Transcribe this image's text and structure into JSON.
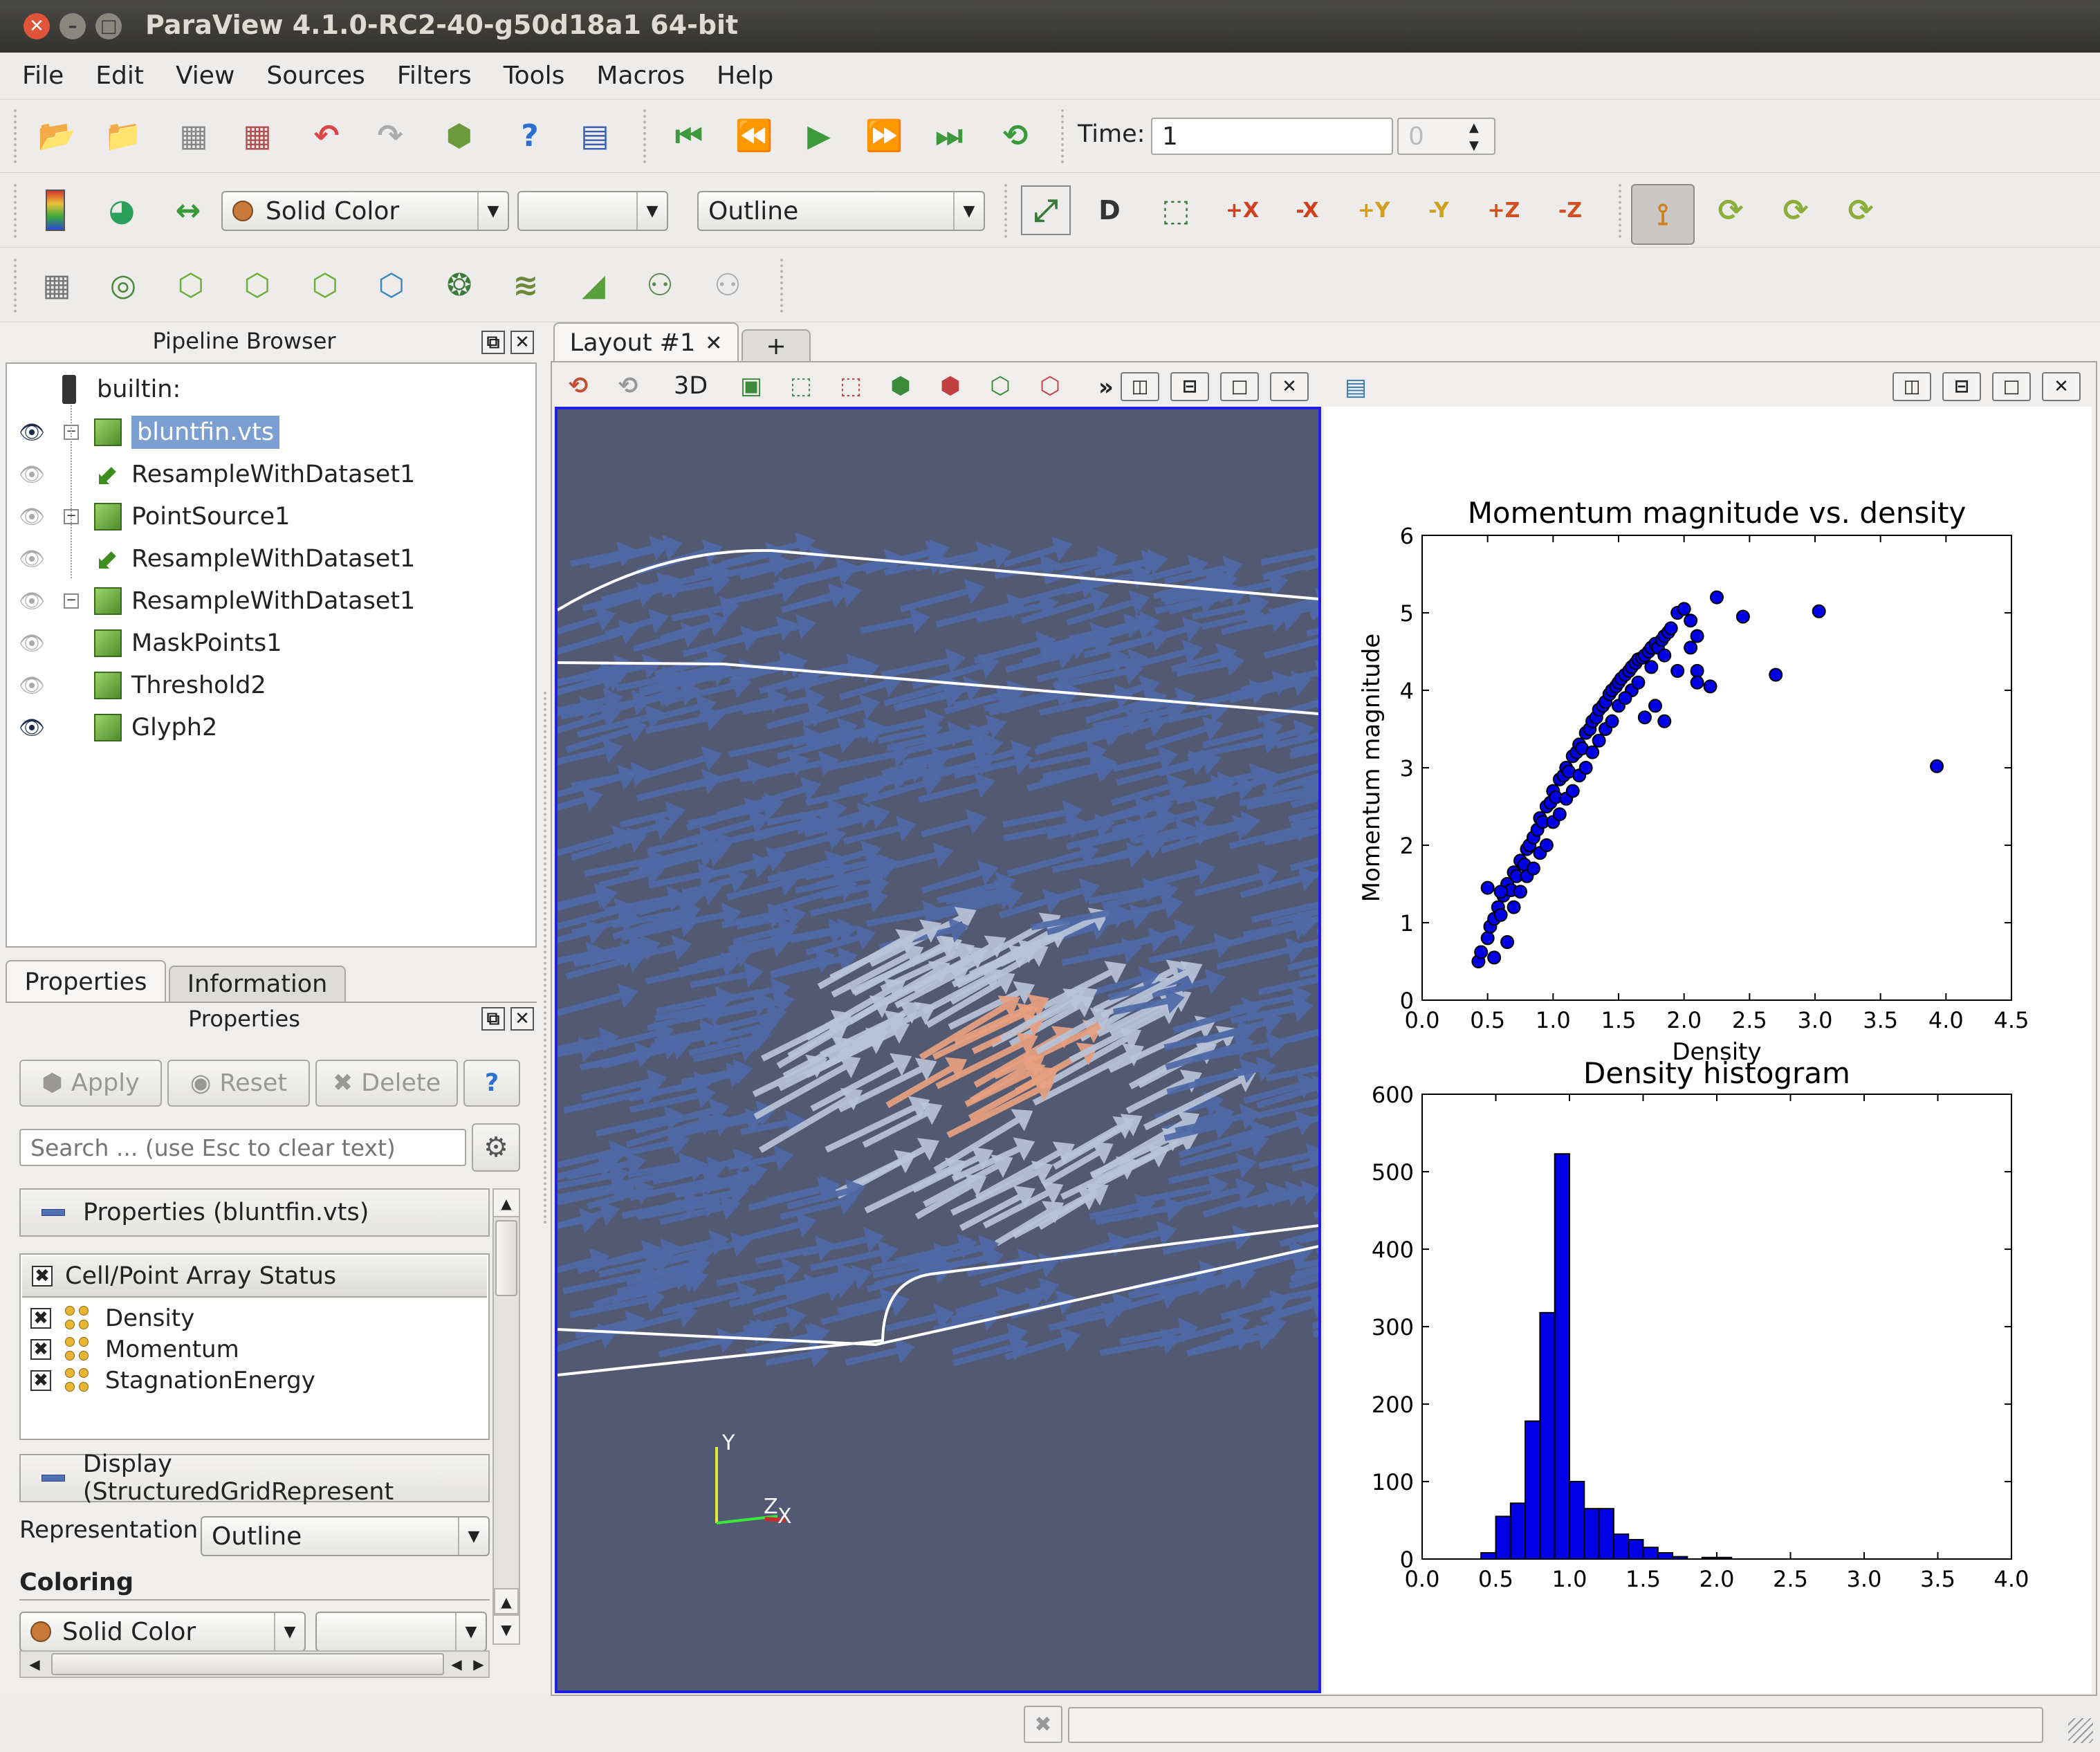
{
  "window": {
    "title": "ParaView 4.1.0-RC2-40-g50d18a1 64-bit"
  },
  "menu": [
    "File",
    "Edit",
    "View",
    "Sources",
    "Filters",
    "Tools",
    "Macros",
    "Help"
  ],
  "toolbar": {
    "time_label": "Time:",
    "time_value": "1",
    "time_index": "0",
    "color_combo": "Solid Color",
    "component_combo": "",
    "representation_combo": "Outline",
    "camera_buttons": [
      "+X",
      "-X",
      "+Y",
      "-Y",
      "+Z",
      "-Z"
    ]
  },
  "pipeline": {
    "title": "Pipeline Browser",
    "root": "builtin:",
    "items": [
      {
        "label": "bluntfin.vts",
        "icon": "cube",
        "indent": 0,
        "visible": true,
        "selected": true
      },
      {
        "label": "ResampleWithDataset1",
        "icon": "filter",
        "indent": 1,
        "visible": false
      },
      {
        "label": "PointSource1",
        "icon": "cube",
        "indent": 0,
        "visible": false
      },
      {
        "label": "ResampleWithDataset1",
        "icon": "filter",
        "indent": 1,
        "visible": false
      },
      {
        "label": "ResampleWithDataset1",
        "icon": "cube",
        "indent": 0,
        "visible": false
      },
      {
        "label": "MaskPoints1",
        "icon": "cube",
        "indent": 1,
        "visible": false
      },
      {
        "label": "Threshold2",
        "icon": "cube",
        "indent": 1,
        "visible": false
      },
      {
        "label": "Glyph2",
        "icon": "cube",
        "indent": 1,
        "visible": true
      }
    ]
  },
  "properties": {
    "tabs": [
      "Properties",
      "Information"
    ],
    "title": "Properties",
    "apply": "Apply",
    "reset": "Reset",
    "delete": "Delete",
    "help": "?",
    "search_placeholder": "Search ... (use Esc to clear text)",
    "section_properties": "Properties (bluntfin.vts)",
    "array_header": "Cell/Point Array Status",
    "arrays": [
      "Density",
      "Momentum",
      "StagnationEnergy"
    ],
    "section_display": "Display (StructuredGridRepresent",
    "representation_label": "Representation",
    "representation_value": "Outline",
    "coloring_label": "Coloring",
    "coloring_value": "Solid Color",
    "coloring_component": ""
  },
  "layout": {
    "tab": "Layout #1",
    "add_tab": "+",
    "view_mode": "3D",
    "more": "»",
    "axes": {
      "y": "Y",
      "z": "Z",
      "x": "X"
    }
  },
  "colors": {
    "accent": "#1f1fe6",
    "view_bg": "#525a73",
    "glyph": "#4f6aa8",
    "glyph_hot": "#e8a080"
  },
  "chart_data": [
    {
      "type": "scatter",
      "title": "Momentum magnitude vs. density",
      "xlabel": "Density",
      "ylabel": "Momentum magnitude",
      "xlim": [
        0.0,
        4.5
      ],
      "ylim": [
        0,
        6
      ],
      "xticks": [
        "0.0",
        "0.5",
        "1.0",
        "1.5",
        "2.0",
        "2.5",
        "3.0",
        "3.5",
        "4.0",
        "4.5"
      ],
      "yticks": [
        "0",
        "1",
        "2",
        "3",
        "4",
        "5",
        "6"
      ],
      "points": [
        [
          0.43,
          0.5
        ],
        [
          0.45,
          0.62
        ],
        [
          0.5,
          0.8
        ],
        [
          0.52,
          0.95
        ],
        [
          0.55,
          1.05
        ],
        [
          0.58,
          1.2
        ],
        [
          0.6,
          1.1
        ],
        [
          0.62,
          1.35
        ],
        [
          0.65,
          1.5
        ],
        [
          0.68,
          1.42
        ],
        [
          0.7,
          1.65
        ],
        [
          0.72,
          1.6
        ],
        [
          0.75,
          1.8
        ],
        [
          0.78,
          1.75
        ],
        [
          0.8,
          1.95
        ],
        [
          0.82,
          2.0
        ],
        [
          0.85,
          2.1
        ],
        [
          0.88,
          2.2
        ],
        [
          0.9,
          2.35
        ],
        [
          0.92,
          2.3
        ],
        [
          0.95,
          2.5
        ],
        [
          0.98,
          2.55
        ],
        [
          1.0,
          2.7
        ],
        [
          1.02,
          2.62
        ],
        [
          1.05,
          2.85
        ],
        [
          1.08,
          2.9
        ],
        [
          1.1,
          3.0
        ],
        [
          1.12,
          2.95
        ],
        [
          1.15,
          3.15
        ],
        [
          1.18,
          3.2
        ],
        [
          1.2,
          3.3
        ],
        [
          1.22,
          3.25
        ],
        [
          1.25,
          3.45
        ],
        [
          1.28,
          3.5
        ],
        [
          1.3,
          3.6
        ],
        [
          1.33,
          3.65
        ],
        [
          1.35,
          3.75
        ],
        [
          1.38,
          3.8
        ],
        [
          1.4,
          3.85
        ],
        [
          1.43,
          3.95
        ],
        [
          1.45,
          4.0
        ],
        [
          1.48,
          4.05
        ],
        [
          1.5,
          4.1
        ],
        [
          1.52,
          4.15
        ],
        [
          1.55,
          4.2
        ],
        [
          1.58,
          4.25
        ],
        [
          1.6,
          4.3
        ],
        [
          1.63,
          4.35
        ],
        [
          1.65,
          4.4
        ],
        [
          1.68,
          4.42
        ],
        [
          1.7,
          4.45
        ],
        [
          1.73,
          4.5
        ],
        [
          1.75,
          4.55
        ],
        [
          1.78,
          4.6
        ],
        [
          1.8,
          4.55
        ],
        [
          1.83,
          4.65
        ],
        [
          1.85,
          4.7
        ],
        [
          1.88,
          4.75
        ],
        [
          1.9,
          4.8
        ],
        [
          1.95,
          5.0
        ],
        [
          2.0,
          5.05
        ],
        [
          2.05,
          4.9
        ],
        [
          2.1,
          4.7
        ],
        [
          2.25,
          5.2
        ],
        [
          2.45,
          4.95
        ],
        [
          2.1,
          4.25
        ],
        [
          2.1,
          4.1
        ],
        [
          2.05,
          4.55
        ],
        [
          2.2,
          4.05
        ],
        [
          1.95,
          4.25
        ],
        [
          1.85,
          3.6
        ],
        [
          1.7,
          3.65
        ],
        [
          1.78,
          3.8
        ],
        [
          1.6,
          4.0
        ],
        [
          2.7,
          4.2
        ],
        [
          3.03,
          5.02
        ],
        [
          3.93,
          3.02
        ],
        [
          0.55,
          0.55
        ],
        [
          0.5,
          1.45
        ],
        [
          0.6,
          1.4
        ],
        [
          0.7,
          1.2
        ],
        [
          0.8,
          1.6
        ],
        [
          0.9,
          1.9
        ],
        [
          1.0,
          2.3
        ],
        [
          1.1,
          2.6
        ],
        [
          1.2,
          2.9
        ],
        [
          1.3,
          3.2
        ],
        [
          1.4,
          3.5
        ],
        [
          1.5,
          3.8
        ],
        [
          0.65,
          0.75
        ],
        [
          0.75,
          1.4
        ],
        [
          0.85,
          1.7
        ],
        [
          0.95,
          2.0
        ],
        [
          1.05,
          2.4
        ],
        [
          1.15,
          2.7
        ],
        [
          1.25,
          3.0
        ],
        [
          1.35,
          3.35
        ],
        [
          1.45,
          3.6
        ],
        [
          1.55,
          3.9
        ],
        [
          1.65,
          4.1
        ],
        [
          1.75,
          4.3
        ],
        [
          1.85,
          4.45
        ]
      ]
    },
    {
      "type": "bar",
      "title": "Density histogram",
      "xlim": [
        0.0,
        4.0
      ],
      "ylim": [
        0,
        600
      ],
      "xticks": [
        "0.0",
        "0.5",
        "1.0",
        "1.5",
        "2.0",
        "2.5",
        "3.0",
        "3.5",
        "4.0"
      ],
      "yticks": [
        "0",
        "100",
        "200",
        "300",
        "400",
        "500",
        "600"
      ],
      "bin_start": 0.4,
      "bin_width": 0.1,
      "values": [
        8,
        55,
        72,
        178,
        318,
        523,
        100,
        65,
        65,
        32,
        25,
        15,
        8,
        3,
        0,
        2,
        2
      ]
    }
  ]
}
